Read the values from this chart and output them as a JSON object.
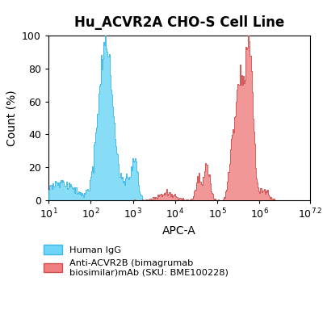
{
  "title": "Hu_ACVR2A CHO-S Cell Line",
  "xlabel": "APC-A",
  "ylabel": "Count (%)",
  "xlim_log": [
    1,
    7.2
  ],
  "ylim": [
    0,
    100
  ],
  "yticks": [
    0,
    20,
    40,
    60,
    80,
    100
  ],
  "xtick_positions_log": [
    1,
    2,
    3,
    4,
    5,
    6,
    7.2
  ],
  "xtick_labels": [
    "$10^1$",
    "$10^2$",
    "$10^3$",
    "$10^4$",
    "$10^5$",
    "$10^6$",
    "$10^{7.2}$"
  ],
  "blue_fill_color": "#6DD5F5",
  "blue_edge_color": "#3BB8E8",
  "red_fill_color": "#F08080",
  "red_edge_color": "#D05050",
  "overlap_color": "#8080AA",
  "legend_blue_label": "Human IgG",
  "legend_red_label": "Anti-ACVR2B (bimagrumab\nbiosimilar)mAb (SKU: BME100228)",
  "background_color": "#ffffff",
  "title_fontsize": 12,
  "axis_fontsize": 10,
  "tick_fontsize": 9,
  "n_bins": 300
}
